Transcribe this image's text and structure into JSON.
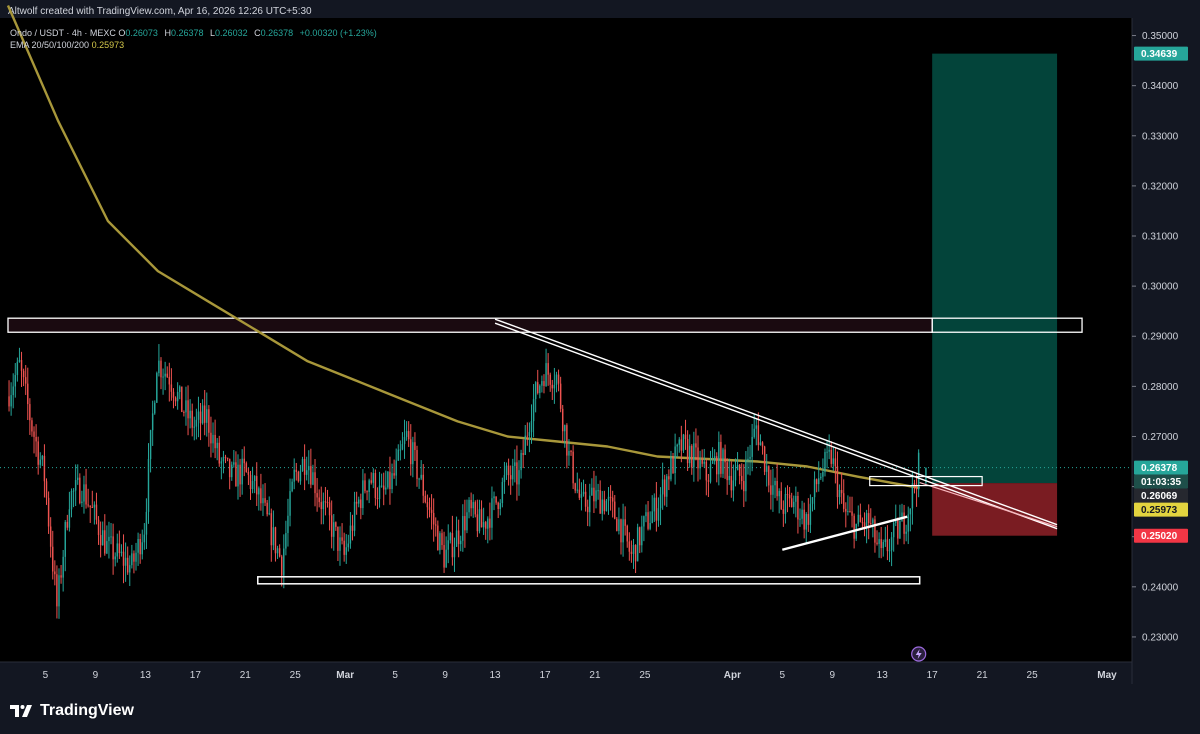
{
  "header": {
    "attribution": "Altwolf created with TradingView.com, Apr 16, 2026 12:26 UTC+5:30"
  },
  "legend": {
    "symbol": "Ondo / USDT · 4h · MEXC",
    "open_label": "O",
    "open": "0.26073",
    "high_label": "H",
    "high": "0.26378",
    "low_label": "L",
    "low": "0.26032",
    "close_label": "C",
    "close": "0.26378",
    "change": "+0.00320 (+1.23%)",
    "ema_label": "EMA 20/50/100/200",
    "ema_value": "0.25973"
  },
  "footer": {
    "brand": "TradingView"
  },
  "colors": {
    "background": "#000000",
    "axis_bg": "#131722",
    "up": "#26a69a",
    "down": "#ef5350",
    "ema": "#a8973a",
    "profit_zone": "#03443a",
    "loss_zone": "#7a1c22",
    "current_price_tag": "#26a69a",
    "countdown_tag": "#1e4f4a",
    "ema_tag": "#e3d43f",
    "stop_tag": "#f23645",
    "target_tag": "#26a69a",
    "entry_tag": "#26282f"
  },
  "chart_data": {
    "type": "candlestick",
    "symbol": "Ondo / USDT",
    "timeframe": "4h",
    "exchange": "MEXC",
    "y_axis": {
      "range": [
        0.225,
        0.3535
      ],
      "ticks": [
        "0.35000",
        "0.34000",
        "0.33000",
        "0.32000",
        "0.31000",
        "0.30000",
        "0.29000",
        "0.28000",
        "0.27000",
        "0.26000",
        "0.25000",
        "0.24000",
        "0.23000"
      ]
    },
    "x_axis": {
      "start": "2026-02-02",
      "end": "2026-05-03",
      "ticks": [
        {
          "label": "5",
          "date": "2026-02-05"
        },
        {
          "label": "9",
          "date": "2026-02-09"
        },
        {
          "label": "13",
          "date": "2026-02-13"
        },
        {
          "label": "17",
          "date": "2026-02-17"
        },
        {
          "label": "21",
          "date": "2026-02-21"
        },
        {
          "label": "25",
          "date": "2026-02-25"
        },
        {
          "label": "Mar",
          "date": "2026-03-01"
        },
        {
          "label": "5",
          "date": "2026-03-05"
        },
        {
          "label": "9",
          "date": "2026-03-09"
        },
        {
          "label": "13",
          "date": "2026-03-13"
        },
        {
          "label": "17",
          "date": "2026-03-17"
        },
        {
          "label": "21",
          "date": "2026-03-21"
        },
        {
          "label": "25",
          "date": "2026-03-25"
        },
        {
          "label": "Apr",
          "date": "2026-04-01"
        },
        {
          "label": "5",
          "date": "2026-04-05"
        },
        {
          "label": "9",
          "date": "2026-04-09"
        },
        {
          "label": "13",
          "date": "2026-04-13"
        },
        {
          "label": "17",
          "date": "2026-04-17"
        },
        {
          "label": "21",
          "date": "2026-04-21"
        },
        {
          "label": "25",
          "date": "2026-04-25"
        },
        {
          "label": "May",
          "date": "2026-05-01"
        }
      ]
    },
    "price_path": [
      [
        "2026-02-02",
        0.278
      ],
      [
        "2026-02-03",
        0.284
      ],
      [
        "2026-02-04",
        0.272
      ],
      [
        "2026-02-05",
        0.262
      ],
      [
        "2026-02-06",
        0.236
      ],
      [
        "2026-02-07",
        0.258
      ],
      [
        "2026-02-08",
        0.26
      ],
      [
        "2026-02-09",
        0.254
      ],
      [
        "2026-02-10",
        0.248
      ],
      [
        "2026-02-11",
        0.246
      ],
      [
        "2026-02-12",
        0.244
      ],
      [
        "2026-02-13",
        0.252
      ],
      [
        "2026-02-14",
        0.285
      ],
      [
        "2026-02-15",
        0.282
      ],
      [
        "2026-02-16",
        0.276
      ],
      [
        "2026-02-17",
        0.272
      ],
      [
        "2026-02-18",
        0.274
      ],
      [
        "2026-02-19",
        0.265
      ],
      [
        "2026-02-20",
        0.262
      ],
      [
        "2026-02-21",
        0.263
      ],
      [
        "2026-02-22",
        0.259
      ],
      [
        "2026-02-23",
        0.252
      ],
      [
        "2026-02-24",
        0.245
      ],
      [
        "2026-02-25",
        0.262
      ],
      [
        "2026-02-26",
        0.266
      ],
      [
        "2026-02-27",
        0.258
      ],
      [
        "2026-02-28",
        0.252
      ],
      [
        "2026-03-01",
        0.246
      ],
      [
        "2026-03-02",
        0.256
      ],
      [
        "2026-03-03",
        0.262
      ],
      [
        "2026-03-04",
        0.258
      ],
      [
        "2026-03-05",
        0.262
      ],
      [
        "2026-03-06",
        0.27
      ],
      [
        "2026-03-07",
        0.262
      ],
      [
        "2026-03-08",
        0.254
      ],
      [
        "2026-03-09",
        0.246
      ],
      [
        "2026-03-10",
        0.25
      ],
      [
        "2026-03-11",
        0.255
      ],
      [
        "2026-03-12",
        0.252
      ],
      [
        "2026-03-13",
        0.256
      ],
      [
        "2026-03-14",
        0.262
      ],
      [
        "2026-03-15",
        0.262
      ],
      [
        "2026-03-16",
        0.276
      ],
      [
        "2026-03-17",
        0.283
      ],
      [
        "2026-03-18",
        0.282
      ],
      [
        "2026-03-19",
        0.266
      ],
      [
        "2026-03-20",
        0.256
      ],
      [
        "2026-03-21",
        0.258
      ],
      [
        "2026-03-22",
        0.257
      ],
      [
        "2026-03-23",
        0.253
      ],
      [
        "2026-03-24",
        0.246
      ],
      [
        "2026-03-25",
        0.252
      ],
      [
        "2026-03-26",
        0.256
      ],
      [
        "2026-03-27",
        0.263
      ],
      [
        "2026-03-28",
        0.268
      ],
      [
        "2026-03-29",
        0.266
      ],
      [
        "2026-03-30",
        0.262
      ],
      [
        "2026-03-31",
        0.266
      ],
      [
        "2026-04-01",
        0.262
      ],
      [
        "2026-04-02",
        0.262
      ],
      [
        "2026-04-03",
        0.272
      ],
      [
        "2026-04-04",
        0.262
      ],
      [
        "2026-04-05",
        0.256
      ],
      [
        "2026-04-06",
        0.257
      ],
      [
        "2026-04-07",
        0.253
      ],
      [
        "2026-04-08",
        0.262
      ],
      [
        "2026-04-09",
        0.266
      ],
      [
        "2026-04-10",
        0.255
      ],
      [
        "2026-04-11",
        0.252
      ],
      [
        "2026-04-12",
        0.253
      ],
      [
        "2026-04-13",
        0.246
      ],
      [
        "2026-04-14",
        0.25
      ],
      [
        "2026-04-15",
        0.254
      ],
      [
        "2026-04-16",
        0.2638
      ]
    ],
    "ema200": [
      [
        "2026-02-02",
        0.356
      ],
      [
        "2026-02-06",
        0.333
      ],
      [
        "2026-02-10",
        0.313
      ],
      [
        "2026-02-14",
        0.303
      ],
      [
        "2026-02-18",
        0.297
      ],
      [
        "2026-02-22",
        0.291
      ],
      [
        "2026-02-26",
        0.285
      ],
      [
        "2026-03-02",
        0.281
      ],
      [
        "2026-03-06",
        0.277
      ],
      [
        "2026-03-10",
        0.273
      ],
      [
        "2026-03-14",
        0.27
      ],
      [
        "2026-03-18",
        0.269
      ],
      [
        "2026-03-22",
        0.268
      ],
      [
        "2026-03-26",
        0.266
      ],
      [
        "2026-03-30",
        0.2655
      ],
      [
        "2026-04-03",
        0.265
      ],
      [
        "2026-04-07",
        0.264
      ],
      [
        "2026-04-11",
        0.262
      ],
      [
        "2026-04-16",
        0.25973
      ]
    ],
    "drawings": {
      "resistance_zone": {
        "from": "2026-02-02",
        "to": "2026-05-03",
        "top": 0.2936,
        "bottom": 0.2908
      },
      "support_zone": {
        "from": "2026-02-22",
        "to": "2026-04-16",
        "top": 0.2418,
        "bottom": 0.241
      },
      "descending_trendline": {
        "from": [
          "2026-03-13",
          0.2934
        ],
        "to": [
          "2026-04-27",
          0.2524
        ]
      },
      "rising_trendline": {
        "from": [
          "2026-04-05",
          0.2474
        ],
        "to": [
          "2026-04-15",
          0.254
        ]
      },
      "entry_box": {
        "from": "2026-04-12",
        "to": "2026-04-21",
        "top": 0.262,
        "bottom": 0.2602
      }
    },
    "position": {
      "type": "long",
      "entry": "0.26069",
      "target": "0.34639",
      "stop": "0.25020",
      "from": "2026-04-17",
      "to": "2026-04-27"
    },
    "price_tags": [
      {
        "value": "0.34639",
        "kind": "target"
      },
      {
        "value": "0.26378",
        "kind": "current"
      },
      {
        "value": "01:03:35",
        "kind": "countdown"
      },
      {
        "value": "0.26069",
        "kind": "entry"
      },
      {
        "value": "0.25973",
        "kind": "ema"
      },
      {
        "value": "0.25020",
        "kind": "stop"
      }
    ]
  }
}
